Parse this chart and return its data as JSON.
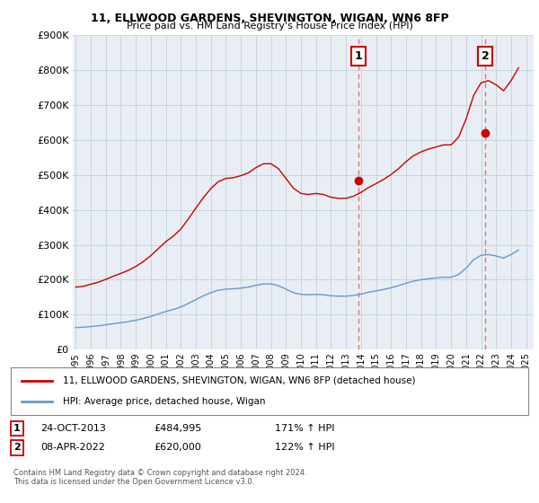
{
  "title": "11, ELLWOOD GARDENS, SHEVINGTON, WIGAN, WN6 8FP",
  "subtitle": "Price paid vs. HM Land Registry's House Price Index (HPI)",
  "legend_line1": "11, ELLWOOD GARDENS, SHEVINGTON, WIGAN, WN6 8FP (detached house)",
  "legend_line2": "HPI: Average price, detached house, Wigan",
  "footnote": "Contains HM Land Registry data © Crown copyright and database right 2024.\nThis data is licensed under the Open Government Licence v3.0.",
  "sale1_label": "1",
  "sale1_date": "24-OCT-2013",
  "sale1_price": "£484,995",
  "sale1_hpi": "171% ↑ HPI",
  "sale1_year": 2013.81,
  "sale1_value": 484995,
  "sale2_label": "2",
  "sale2_date": "08-APR-2022",
  "sale2_price": "£620,000",
  "sale2_hpi": "122% ↑ HPI",
  "sale2_year": 2022.27,
  "sale2_value": 620000,
  "red_color": "#cc0000",
  "blue_color": "#6699cc",
  "dashed_color": "#e87070",
  "axes_bg_color": "#e8eef4",
  "background_color": "#ffffff",
  "grid_color": "#c8d4dc",
  "ylim": [
    0,
    900000
  ],
  "xlim_start": 1994.8,
  "xlim_end": 2025.5,
  "hpi_years": [
    1995.0,
    1995.5,
    1996.0,
    1996.5,
    1997.0,
    1997.5,
    1998.0,
    1998.5,
    1999.0,
    1999.5,
    2000.0,
    2000.5,
    2001.0,
    2001.5,
    2002.0,
    2002.5,
    2003.0,
    2003.5,
    2004.0,
    2004.5,
    2005.0,
    2005.5,
    2006.0,
    2006.5,
    2007.0,
    2007.5,
    2008.0,
    2008.5,
    2009.0,
    2009.5,
    2010.0,
    2010.5,
    2011.0,
    2011.5,
    2012.0,
    2012.5,
    2013.0,
    2013.5,
    2014.0,
    2014.5,
    2015.0,
    2015.5,
    2016.0,
    2016.5,
    2017.0,
    2017.5,
    2018.0,
    2018.5,
    2019.0,
    2019.5,
    2020.0,
    2020.5,
    2021.0,
    2021.5,
    2022.0,
    2022.5,
    2023.0,
    2023.5,
    2024.0,
    2024.5
  ],
  "hpi_values": [
    63000,
    64000,
    66000,
    68000,
    71000,
    74000,
    77000,
    80000,
    84000,
    89000,
    95000,
    102000,
    109000,
    115000,
    122000,
    132000,
    143000,
    154000,
    163000,
    170000,
    173000,
    174000,
    176000,
    179000,
    184000,
    188000,
    188000,
    183000,
    173000,
    163000,
    158000,
    157000,
    158000,
    157000,
    154000,
    153000,
    153000,
    155000,
    159000,
    164000,
    168000,
    172000,
    177000,
    183000,
    190000,
    196000,
    200000,
    203000,
    205000,
    207000,
    207000,
    215000,
    233000,
    257000,
    270000,
    272000,
    268000,
    262000,
    272000,
    285000
  ],
  "red_years": [
    1995.0,
    1995.5,
    1996.0,
    1996.5,
    1997.0,
    1997.5,
    1998.0,
    1998.5,
    1999.0,
    1999.5,
    2000.0,
    2000.5,
    2001.0,
    2001.5,
    2002.0,
    2002.5,
    2003.0,
    2003.5,
    2004.0,
    2004.5,
    2005.0,
    2005.5,
    2006.0,
    2006.5,
    2007.0,
    2007.5,
    2008.0,
    2008.5,
    2009.0,
    2009.5,
    2010.0,
    2010.5,
    2011.0,
    2011.5,
    2012.0,
    2012.5,
    2013.0,
    2013.5,
    2014.0,
    2014.5,
    2015.0,
    2015.5,
    2016.0,
    2016.5,
    2017.0,
    2017.5,
    2018.0,
    2018.5,
    2019.0,
    2019.5,
    2020.0,
    2020.5,
    2021.0,
    2021.5,
    2022.0,
    2022.5,
    2023.0,
    2023.5,
    2024.0,
    2024.5
  ],
  "red_values": [
    179000,
    181000,
    187000,
    193000,
    201000,
    210000,
    218000,
    227000,
    238000,
    252000,
    269000,
    289000,
    309000,
    325000,
    345000,
    374000,
    405000,
    435000,
    461000,
    481000,
    490000,
    492000,
    498000,
    506000,
    521000,
    532000,
    532000,
    518000,
    490000,
    462000,
    447000,
    444000,
    447000,
    444000,
    436000,
    433000,
    433000,
    439000,
    450000,
    464000,
    475000,
    487000,
    501000,
    518000,
    538000,
    555000,
    566000,
    574000,
    580000,
    586000,
    586000,
    608000,
    660000,
    727000,
    764000,
    770000,
    758000,
    741000,
    770000,
    807000
  ]
}
